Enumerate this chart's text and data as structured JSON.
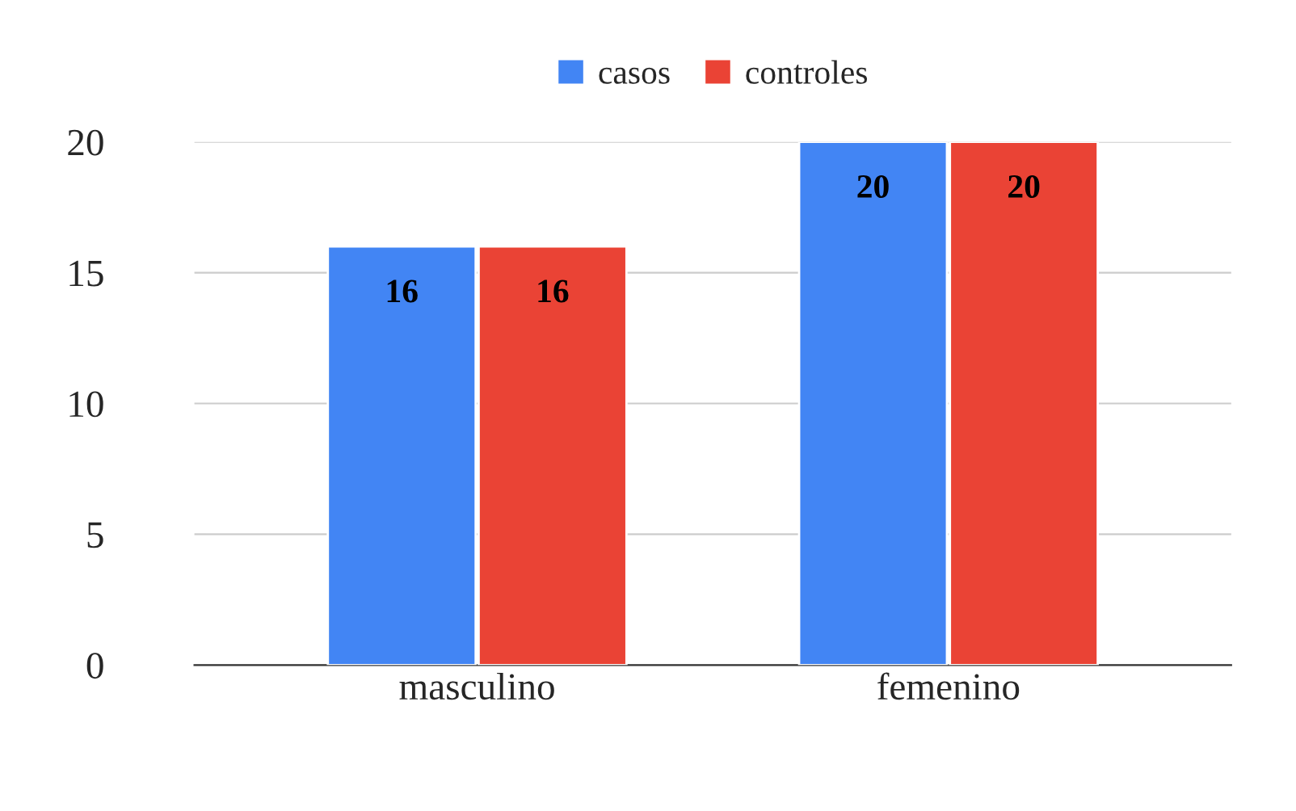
{
  "chart_data": {
    "type": "bar",
    "categories": [
      "masculino",
      "femenino"
    ],
    "series": [
      {
        "name": "casos",
        "color": "#4285f4",
        "values": [
          16,
          20
        ]
      },
      {
        "name": "controles",
        "color": "#ea4335",
        "values": [
          16,
          20
        ]
      }
    ],
    "ylim": [
      0,
      20
    ],
    "yticks": [
      0,
      5,
      10,
      15,
      20
    ],
    "grid": "y",
    "legend": "top",
    "data_labels": true
  }
}
